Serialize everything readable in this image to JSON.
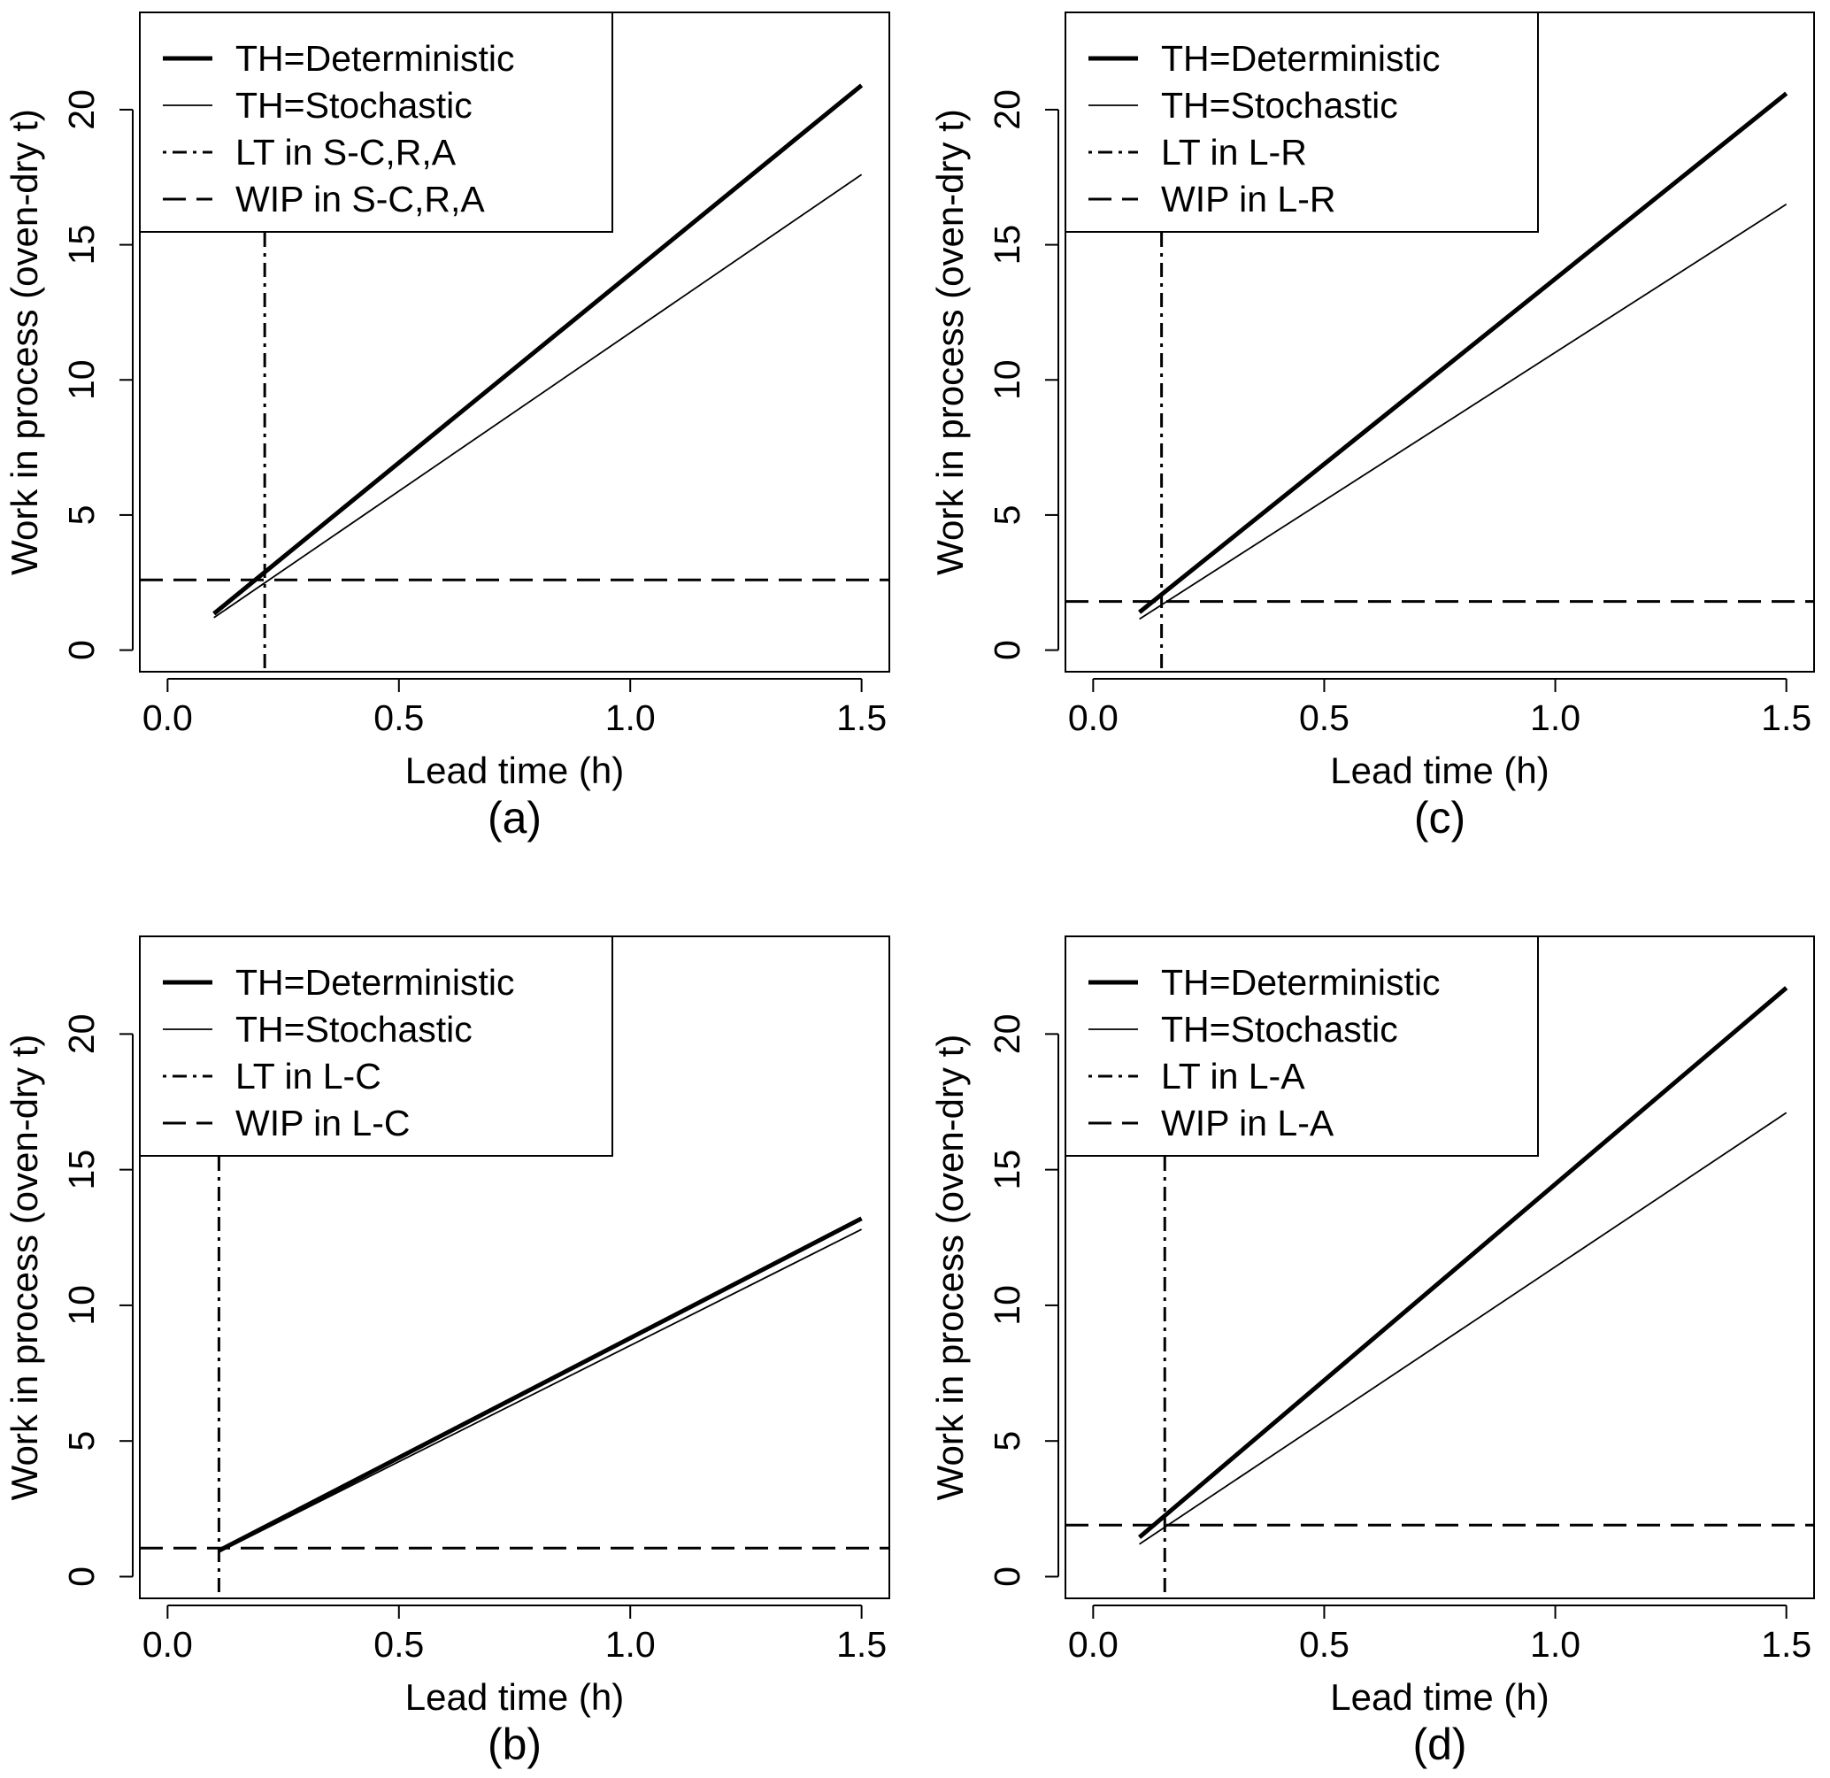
{
  "figure": {
    "legend_position": "top-left",
    "colors": {
      "line": "#000000",
      "background": "#ffffff"
    }
  },
  "chart_data": [
    {
      "type": "line",
      "panel_label": "(a)",
      "xlabel": "Lead time (h)",
      "ylabel": "Work in process (oven-dry t)",
      "xlim": [
        -0.06,
        1.56
      ],
      "ylim": [
        -0.8,
        23.6
      ],
      "xticks": [
        0.0,
        0.5,
        1.0,
        1.5
      ],
      "xtick_labels": [
        "0.0",
        "0.5",
        "1.0",
        "1.5"
      ],
      "yticks": [
        0,
        5,
        10,
        15,
        20
      ],
      "ytick_labels": [
        "0",
        "5",
        "10",
        "15",
        "20"
      ],
      "series": [
        {
          "name": "TH=Deterministic",
          "style": "thick",
          "x": [
            0.1,
            1.5
          ],
          "y": [
            1.35,
            20.9
          ]
        },
        {
          "name": "TH=Stochastic",
          "style": "thin",
          "x": [
            0.1,
            1.5
          ],
          "y": [
            1.2,
            17.6
          ]
        }
      ],
      "vline": {
        "label": "LT in S-C,R,A",
        "x": 0.21
      },
      "hline": {
        "label": "WIP in S-C,R,A",
        "y": 2.6
      },
      "legend": [
        "TH=Deterministic",
        "TH=Stochastic",
        "LT in S-C,R,A",
        "WIP in S-C,R,A"
      ]
    },
    {
      "type": "line",
      "panel_label": "(c)",
      "xlabel": "Lead time (h)",
      "ylabel": "Work in process (oven-dry t)",
      "xlim": [
        -0.06,
        1.56
      ],
      "ylim": [
        -0.8,
        23.6
      ],
      "xticks": [
        0.0,
        0.5,
        1.0,
        1.5
      ],
      "xtick_labels": [
        "0.0",
        "0.5",
        "1.0",
        "1.5"
      ],
      "yticks": [
        0,
        5,
        10,
        15,
        20
      ],
      "ytick_labels": [
        "0",
        "5",
        "10",
        "15",
        "20"
      ],
      "series": [
        {
          "name": "TH=Deterministic",
          "style": "thick",
          "x": [
            0.1,
            1.5
          ],
          "y": [
            1.4,
            20.6
          ]
        },
        {
          "name": "TH=Stochastic",
          "style": "thin",
          "x": [
            0.1,
            1.5
          ],
          "y": [
            1.15,
            16.5
          ]
        }
      ],
      "vline": {
        "label": "LT in  L-R",
        "x": 0.148
      },
      "hline": {
        "label": "WIP in  L-R",
        "y": 1.8
      },
      "legend": [
        "TH=Deterministic",
        "TH=Stochastic",
        "LT in  L-R",
        "WIP in  L-R"
      ]
    },
    {
      "type": "line",
      "panel_label": "(b)",
      "xlabel": "Lead time (h)",
      "ylabel": "Work in process (oven-dry t)",
      "xlim": [
        -0.06,
        1.56
      ],
      "ylim": [
        -0.8,
        23.6
      ],
      "xticks": [
        0.0,
        0.5,
        1.0,
        1.5
      ],
      "xtick_labels": [
        "0.0",
        "0.5",
        "1.0",
        "1.5"
      ],
      "yticks": [
        0,
        5,
        10,
        15,
        20
      ],
      "ytick_labels": [
        "0",
        "5",
        "10",
        "15",
        "20"
      ],
      "series": [
        {
          "name": "TH=Deterministic",
          "style": "thick",
          "x": [
            0.11,
            1.5
          ],
          "y": [
            0.95,
            13.2
          ]
        },
        {
          "name": "TH=Stochastic",
          "style": "thin",
          "x": [
            0.11,
            1.5
          ],
          "y": [
            0.9,
            12.8
          ]
        }
      ],
      "vline": {
        "label": "LT in  L-C",
        "x": 0.111
      },
      "hline": {
        "label": "WIP in  L-C",
        "y": 1.05
      },
      "legend": [
        "TH=Deterministic",
        "TH=Stochastic",
        "LT in  L-C",
        "WIP in  L-C"
      ]
    },
    {
      "type": "line",
      "panel_label": "(d)",
      "xlabel": "Lead time (h)",
      "ylabel": "Work in process (oven-dry t)",
      "xlim": [
        -0.06,
        1.56
      ],
      "ylim": [
        -0.8,
        23.6
      ],
      "xticks": [
        0.0,
        0.5,
        1.0,
        1.5
      ],
      "xtick_labels": [
        "0.0",
        "0.5",
        "1.0",
        "1.5"
      ],
      "yticks": [
        0,
        5,
        10,
        15,
        20
      ],
      "ytick_labels": [
        "0",
        "5",
        "10",
        "15",
        "20"
      ],
      "series": [
        {
          "name": "TH=Deterministic",
          "style": "thick",
          "x": [
            0.1,
            1.5
          ],
          "y": [
            1.45,
            21.7
          ]
        },
        {
          "name": "TH=Stochastic",
          "style": "thin",
          "x": [
            0.1,
            1.5
          ],
          "y": [
            1.2,
            17.1
          ]
        }
      ],
      "vline": {
        "label": "LT in  L-A",
        "x": 0.155
      },
      "hline": {
        "label": "WIP in  L-A",
        "y": 1.9
      },
      "legend": [
        "TH=Deterministic",
        "TH=Stochastic",
        "LT in  L-A",
        "WIP in  L-A"
      ]
    }
  ]
}
